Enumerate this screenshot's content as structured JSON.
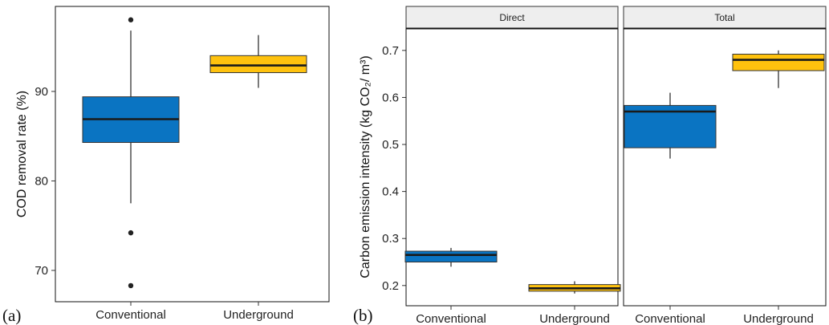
{
  "colors": {
    "conventional": "#0a74c2",
    "underground": "#ffc20e",
    "outline": "#333333",
    "strip_bg": "#eeeeee"
  },
  "chart_data": [
    {
      "type": "box",
      "panel_label": "(a)",
      "ylabel": "COD removal rate (%)",
      "xlabel": "",
      "ylim": [
        66.5,
        99.5
      ],
      "yticks": [
        70,
        80,
        90
      ],
      "categories": [
        "Conventional",
        "Underground"
      ],
      "boxes": [
        {
          "category": "Conventional",
          "whisker_low": 77.5,
          "q1": 84.3,
          "median": 86.9,
          "q3": 89.4,
          "whisker_high": 96.8,
          "outliers": [
            98.0,
            74.2,
            68.3
          ],
          "color": "#0a74c2"
        },
        {
          "category": "Underground",
          "whisker_low": 90.4,
          "q1": 92.1,
          "median": 92.9,
          "q3": 94.0,
          "whisker_high": 96.3,
          "outliers": [],
          "color": "#ffc20e"
        }
      ]
    },
    {
      "type": "box",
      "panel_label": "(b)",
      "ylabel": "Carbon emission intensity (kg CO₂/ m³)",
      "xlabel": "",
      "ylim": [
        0.157,
        0.7475
      ],
      "yticks": [
        "0.2",
        "0.3",
        "0.4",
        "0.5",
        "0.6",
        "0.7"
      ],
      "facets": [
        {
          "strip": "Direct",
          "categories": [
            "Conventional",
            "Underground"
          ],
          "boxes": [
            {
              "category": "Conventional",
              "whisker_low": 0.24,
              "q1": 0.25,
              "median": 0.265,
              "q3": 0.273,
              "whisker_high": 0.28,
              "outliers": [],
              "color": "#0a74c2"
            },
            {
              "category": "Underground",
              "whisker_low": 0.183,
              "q1": 0.188,
              "median": 0.194,
              "q3": 0.202,
              "whisker_high": 0.209,
              "outliers": [],
              "color": "#ffc20e"
            }
          ]
        },
        {
          "strip": "Total",
          "categories": [
            "Conventional",
            "Underground"
          ],
          "boxes": [
            {
              "category": "Conventional",
              "whisker_low": 0.47,
              "q1": 0.493,
              "median": 0.57,
              "q3": 0.583,
              "whisker_high": 0.61,
              "outliers": [],
              "color": "#0a74c2"
            },
            {
              "category": "Underground",
              "whisker_low": 0.62,
              "q1": 0.657,
              "median": 0.68,
              "q3": 0.692,
              "whisker_high": 0.7,
              "outliers": [],
              "color": "#ffc20e"
            }
          ]
        }
      ]
    }
  ]
}
